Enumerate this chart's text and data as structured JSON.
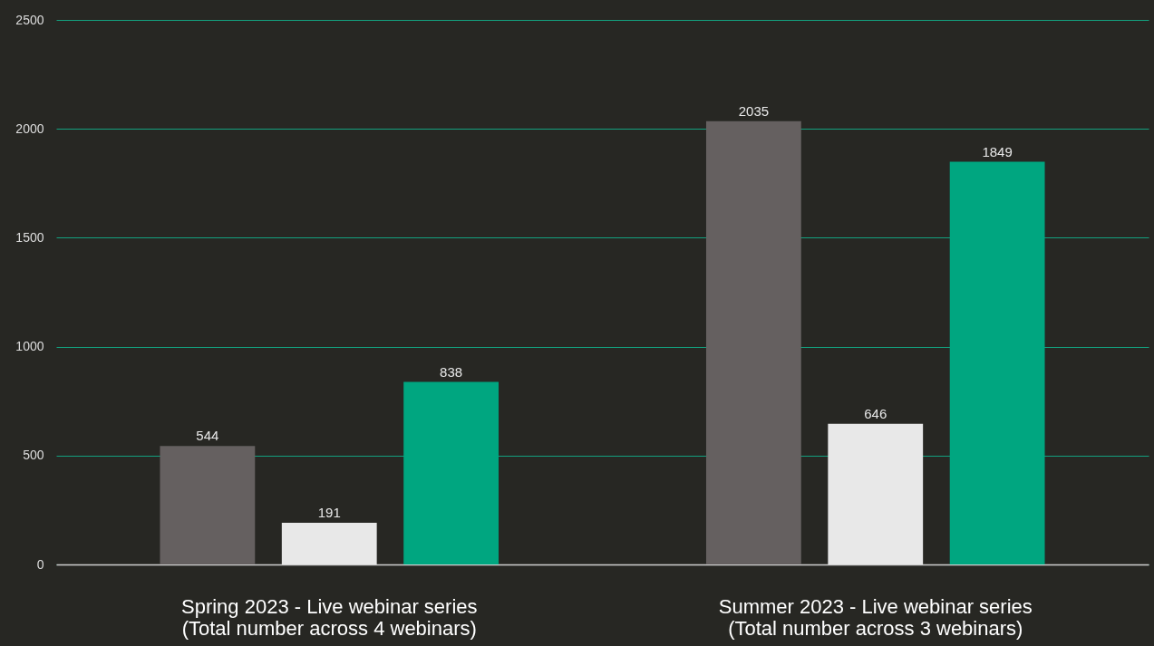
{
  "chart_data": {
    "type": "bar",
    "categories": [
      "Spring 2023 - Live webinar series\n(Total number across 4 webinars)",
      "Summer 2023 - Live webinar series\n(Total number across 3 webinars)"
    ],
    "series": [
      {
        "color": "#656060",
        "values": [
          544,
          2035
        ]
      },
      {
        "color": "#e8e8e8",
        "values": [
          191,
          646
        ]
      },
      {
        "color": "#00a680",
        "values": [
          838,
          1849
        ]
      }
    ],
    "ylim": [
      0,
      2500
    ],
    "yticks": [
      0,
      500,
      1000,
      1500,
      2000,
      2500
    ],
    "grid": "y",
    "data_labels": true,
    "legend": false
  }
}
